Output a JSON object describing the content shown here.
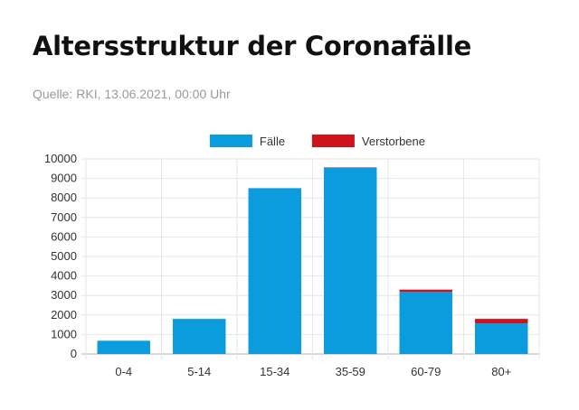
{
  "header": {
    "title": "Altersstruktur der Coronafälle",
    "source": "Quelle: RKI, 13.06.2021, 00:00 Uhr"
  },
  "chart_data": {
    "type": "bar",
    "stacked": true,
    "categories": [
      "0-4",
      "5-14",
      "15-34",
      "35-59",
      "60-79",
      "80+"
    ],
    "series": [
      {
        "name": "Fälle",
        "color": "#0a9cdc",
        "values": [
          680,
          1800,
          8500,
          9550,
          3180,
          1570
        ]
      },
      {
        "name": "Verstorbene",
        "color": "#d0121b",
        "values": [
          0,
          0,
          2,
          20,
          120,
          230
        ]
      }
    ],
    "ylim": [
      0,
      10000
    ],
    "yticks": [
      0,
      1000,
      2000,
      3000,
      4000,
      5000,
      6000,
      7000,
      8000,
      9000,
      10000
    ],
    "grid": true,
    "legend_position": "top-center"
  }
}
